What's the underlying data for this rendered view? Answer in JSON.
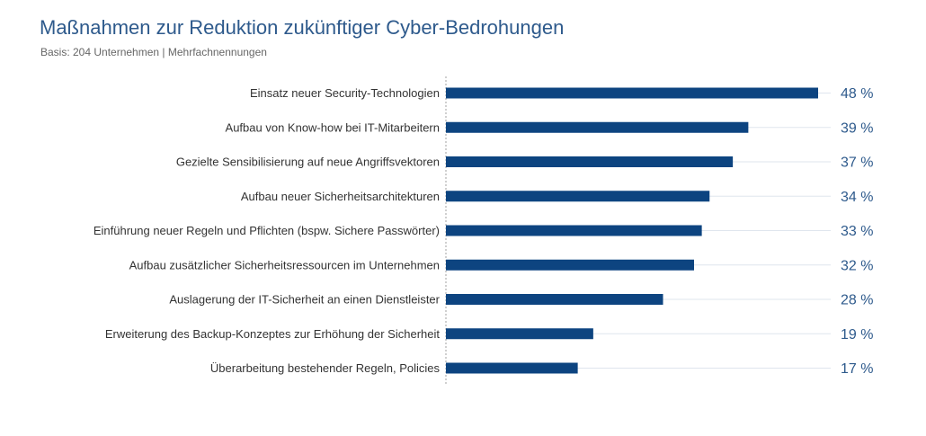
{
  "header": {
    "title": "Maßnahmen zur Reduktion zukünftiger Cyber-Bedrohungen",
    "subtitle": "Basis: 204 Unternehmen | Mehrfachnennungen"
  },
  "colors": {
    "bar": "#0d4480",
    "title": "#2e5a8c",
    "value_label": "#2e5a8c",
    "gridline": "#dfe5ee",
    "axis": "#a0a0a0"
  },
  "chart_data": {
    "type": "bar",
    "orientation": "horizontal",
    "title": "Maßnahmen zur Reduktion zukünftiger Cyber-Bedrohungen",
    "subtitle": "Basis: 204 Unternehmen | Mehrfachnennungen",
    "xlabel": "",
    "ylabel": "",
    "xlim": [
      0,
      48
    ],
    "grid": true,
    "legend": "none",
    "categories": [
      "Einsatz neuer Security-Technologien",
      "Aufbau von Know-how bei IT-Mitarbeitern",
      "Gezielte Sensibilisierung auf neue Angriffsvektoren",
      "Aufbau neuer Sicherheitsarchitekturen",
      "Einführung neuer Regeln und Pflichten (bspw. Sichere Passwörter)",
      "Aufbau zusätzlicher Sicherheitsressourcen im Unternehmen",
      "Auslagerung der IT-Sicherheit an einen Dienstleister",
      "Erweiterung des Backup-Konzeptes zur Erhöhung der Sicherheit",
      "Überarbeitung bestehender Regeln, Policies"
    ],
    "values": [
      48,
      39,
      37,
      34,
      33,
      32,
      28,
      19,
      17
    ],
    "value_labels": [
      "48 %",
      "39 %",
      "37 %",
      "34 %",
      "33 %",
      "32 %",
      "28 %",
      "19 %",
      "17 %"
    ]
  }
}
